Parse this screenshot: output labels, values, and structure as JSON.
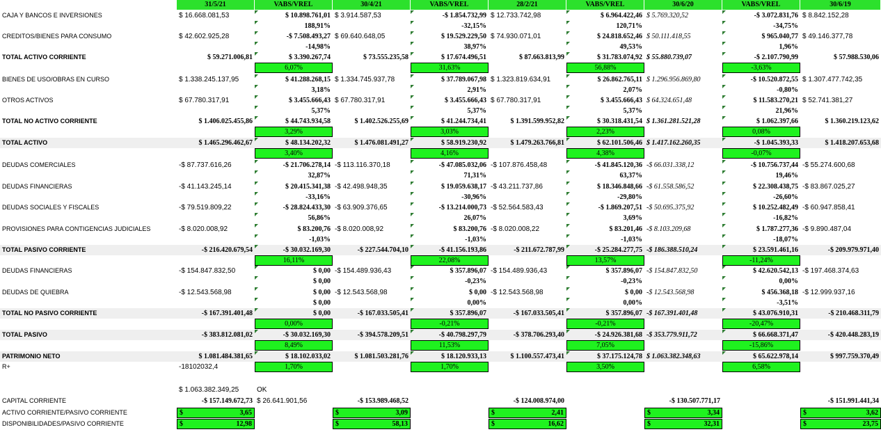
{
  "headers": [
    "31/5/21",
    "VABS/VREL",
    "30/4/21",
    "VABS/VREL",
    "28/2/21",
    "VABS/VREL",
    "30/6/20",
    "VABS/VREL",
    "30/6/19"
  ],
  "rows": [
    {
      "label": "CAJA Y BANCOS E INVERSIONES",
      "vals": [
        "$ 16.668.081,53",
        "$ 10.898.761,01",
        "$ 3.914.587,53",
        "-$ 1.854.732,99",
        "$ 12.733.742,98",
        "$ 6.964.422,46",
        "$ 5.769.320,52",
        "-$ 3.072.831,76",
        "$ 8.842.152,28"
      ]
    },
    {
      "label": "",
      "vals": [
        "",
        "188,91%",
        "",
        "-32,15%",
        "",
        "120,71%",
        "",
        "-34,75%",
        ""
      ]
    },
    {
      "label": "CREDITOS/BIENES PARA CONSUMO",
      "vals": [
        "$ 42.602.925,28",
        "-$ 7.508.493,27",
        "$ 69.640.648,05",
        "$ 19.529.229,50",
        "$ 74.930.071,01",
        "$ 24.818.652,46",
        "$ 50.111.418,55",
        "$ 965.040,77",
        "$ 49.146.377,78"
      ]
    },
    {
      "label": "",
      "vals": [
        "",
        "-14,98%",
        "",
        "38,97%",
        "",
        "49,53%",
        "",
        "1,96%",
        ""
      ]
    },
    {
      "label": "TOTAL ACTIVO CORRIENTE",
      "vals": [
        "$ 59.271.006,81",
        "$ 3.390.267,74",
        "$ 73.555.235,58",
        "$ 17.674.496,51",
        "$ 87.663.813,99",
        "$ 31.783.074,92",
        "$ 55.880.739,07",
        "-$ 2.107.790,99",
        "$ 57.988.530,06"
      ]
    },
    {
      "label": "",
      "vals": [
        "",
        "6,07%",
        "",
        "31,63%",
        "",
        "56,88%",
        "",
        "-3,63%",
        ""
      ]
    },
    {
      "label": "BIENES DE USO/OBRAS EN CURSO",
      "vals": [
        "$ 1.338.245.137,95",
        "$ 41.288.268,15",
        "$ 1.334.745.937,78",
        "$ 37.789.067,98",
        "$ 1.323.819.634,91",
        "$ 26.862.765,11",
        "$ 1.296.956.869,80",
        "-$ 10.520.872,55",
        "$ 1.307.477.742,35"
      ]
    },
    {
      "label": "",
      "vals": [
        "",
        "3,18%",
        "",
        "2,91%",
        "",
        "2,07%",
        "",
        "-0,80%",
        ""
      ]
    },
    {
      "label": "OTROS ACTIVOS",
      "vals": [
        "$ 67.780.317,91",
        "$ 3.455.666,43",
        "$ 67.780.317,91",
        "$ 3.455.666,43",
        "$ 67.780.317,91",
        "$ 3.455.666,43",
        "$ 64.324.651,48",
        "$ 11.583.270,21",
        "$ 52.741.381,27"
      ]
    },
    {
      "label": "",
      "vals": [
        "",
        "5,37%",
        "",
        "5,37%",
        "",
        "5,37%",
        "",
        "21,96%",
        ""
      ]
    },
    {
      "label": "TOTAL  NO ACTIVO CORRIENTE",
      "vals": [
        "$ 1.406.025.455,86",
        "$ 44.743.934,58",
        "$ 1.402.526.255,69",
        "$ 41.244.734,41",
        "$ 1.391.599.952,82",
        "$ 30.318.431,54",
        "$ 1.361.281.521,28",
        "$ 1.062.397,66",
        "$ 1.360.219.123,62"
      ]
    },
    {
      "label": "",
      "vals": [
        "",
        "3,29%",
        "",
        "3,03%",
        "",
        "2,23%",
        "",
        "0,08%",
        ""
      ]
    },
    {
      "label": "TOTAL ACTIVO",
      "vals": [
        "$ 1.465.296.462,67",
        "$ 48.134.202,32",
        "$ 1.476.081.491,27",
        "$ 58.919.230,92",
        "$ 1.479.263.766,81",
        "$ 62.101.506,46",
        "$ 1.417.162.260,35",
        "-$ 1.045.393,33",
        "$ 1.418.207.653,68"
      ]
    },
    {
      "label": "",
      "vals": [
        "",
        "3,40%",
        "",
        "4,16%",
        "",
        "4,38%",
        "",
        "-0,07%",
        ""
      ]
    },
    {
      "label": "DEUDAS COMERCIALES",
      "vals": [
        "-$ 87.737.616,26",
        "-$ 21.706.278,14",
        "-$ 113.116.370,18",
        "-$ 47.085.032,06",
        "-$ 107.876.458,48",
        "-$ 41.845.120,36",
        "-$ 66.031.338,12",
        "-$ 10.756.737,44",
        "-$ 55.274.600,68"
      ]
    },
    {
      "label": "",
      "vals": [
        "",
        "32,87%",
        "",
        "71,31%",
        "",
        "63,37%",
        "",
        "19,46%",
        ""
      ]
    },
    {
      "label": "DEUDAS FINANCIERAS",
      "vals": [
        "-$ 41.143.245,14",
        "$ 20.415.341,38",
        "-$ 42.498.948,35",
        "$ 19.059.638,17",
        "-$ 43.211.737,86",
        "$ 18.346.848,66",
        "-$ 61.558.586,52",
        "$ 22.308.438,75",
        "-$ 83.867.025,27"
      ]
    },
    {
      "label": "",
      "vals": [
        "",
        "-33,16%",
        "",
        "-30,96%",
        "",
        "-29,80%",
        "",
        "-26,60%",
        ""
      ]
    },
    {
      "label": "DEUDAS SOCIALES Y FISCALES",
      "vals": [
        "-$ 79.519.809,22",
        "-$ 28.824.433,30",
        "-$ 63.909.376,65",
        "-$ 13.214.000,73",
        "-$ 52.564.583,43",
        "-$ 1.869.207,51",
        "-$ 50.695.375,92",
        "$ 10.252.482,49",
        "-$ 60.947.858,41"
      ]
    },
    {
      "label": "",
      "vals": [
        "",
        "56,86%",
        "",
        "26,07%",
        "",
        "3,69%",
        "",
        "-16,82%",
        ""
      ]
    },
    {
      "label": "PROVISIONES PARA CONTIGENCIAS JUDICIALES",
      "vals": [
        "-$ 8.020.008,92",
        "$ 83.200,76",
        "-$ 8.020.008,92",
        "$ 83.200,76",
        "-$ 8.020.008,22",
        "$ 83.201,46",
        "-$ 8.103.209,68",
        "$ 1.787.277,36",
        "-$ 9.890.487,04"
      ]
    },
    {
      "label": "",
      "vals": [
        "",
        "-1,03%",
        "",
        "-1,03%",
        "",
        "-1,03%",
        "",
        "-18,07%",
        ""
      ]
    },
    {
      "label": "TOTAL PASIVO CORRIENTE",
      "vals": [
        "-$ 216.420.679,54",
        "-$ 30.032.169,30",
        "-$ 227.544.704,10",
        "-$ 41.156.193,86",
        "-$ 211.672.787,99",
        "-$ 25.284.277,75",
        "-$ 186.388.510,24",
        "$ 23.591.461,16",
        "-$ 209.979.971,40"
      ]
    },
    {
      "label": "",
      "vals": [
        "",
        "16,11%",
        "",
        "22,08%",
        "",
        "13,57%",
        "",
        "-11,24%",
        ""
      ]
    },
    {
      "label": "DEUDAS FINANCIERAS",
      "vals": [
        "-$ 154.847.832,50",
        "$ 0,00",
        "-$ 154.489.936,43",
        "$ 357.896,07",
        "-$ 154.489.936,43",
        "$ 357.896,07",
        "-$ 154.847.832,50",
        "$ 42.620.542,13",
        "-$ 197.468.374,63"
      ]
    },
    {
      "label": "",
      "vals": [
        "",
        "$ 0,00",
        "",
        "-0,23%",
        "",
        "-0,23%",
        "",
        "0,00%",
        ""
      ]
    },
    {
      "label": "DEUDAS DE QUIEBRA",
      "vals": [
        "-$ 12.543.568,98",
        "$ 0,00",
        "-$ 12.543.568,98",
        "$ 0,00",
        "-$ 12.543.568,98",
        "$ 0,00",
        "-$ 12.543.568,98",
        "$ 456.368,18",
        "-$ 12.999.937,16"
      ]
    },
    {
      "label": "",
      "vals": [
        "",
        "$ 0,00",
        "",
        "0,00%",
        "",
        "0,00%",
        "",
        "-3,51%",
        ""
      ]
    },
    {
      "label": "TOTAL NO PASIVO CORRIENTE",
      "vals": [
        "-$ 167.391.401,48",
        "$ 0,00",
        "-$ 167.033.505,41",
        "$ 357.896,07",
        "-$ 167.033.505,41",
        "$ 357.896,07",
        "-$ 167.391.401,48",
        "$ 43.076.910,31",
        "-$ 210.468.311,79"
      ]
    },
    {
      "label": "",
      "vals": [
        "",
        "0,00%",
        "",
        "-0,21%",
        "",
        "-0,21%",
        "",
        "-20,47%",
        ""
      ]
    },
    {
      "label": "TOTAL PASIVO",
      "vals": [
        "-$ 383.812.081,02",
        "-$ 30.032.169,30",
        "-$ 394.578.209,51",
        "-$ 40.798.297,79",
        "-$ 378.706.293,40",
        "-$ 24.926.381,68",
        "-$ 353.779.911,72",
        "$ 66.668.371,47",
        "-$ 420.448.283,19"
      ]
    },
    {
      "label": "",
      "vals": [
        "",
        "8,49%",
        "",
        "11,53%",
        "",
        "7,05%",
        "",
        "-15,86%",
        ""
      ]
    },
    {
      "label": "PATRIMONIO NETO",
      "vals": [
        "$ 1.081.484.381,65",
        "$ 18.102.033,02",
        "$ 1.081.503.281,76",
        "$ 18.120.933,13",
        "$ 1.100.557.473,41",
        "$ 37.175.124,78",
        "$ 1.063.382.348,63",
        "$ 65.622.978,14",
        "$ 997.759.370,49"
      ]
    },
    {
      "label": "R+",
      "vals": [
        "-18102032,4",
        "1,70%",
        "",
        "1,70%",
        "",
        "3,50%",
        "",
        "6,58%",
        ""
      ]
    }
  ],
  "check": {
    "value": "$ 1.063.382.349,25",
    "ok": "OK"
  },
  "capital": {
    "label": "CAPITAL CORRIENTE",
    "vals": [
      "-$ 157.149.672,73",
      "$ 26.641.901,56",
      "-$ 153.989.468,52",
      "-$ 124.008.974,00",
      "-$ 130.507.771,17",
      "-$ 151.991.441,34"
    ]
  },
  "ratio1": {
    "label": "ACTIVO CORRIENTE/PASIVO CORRIENTE",
    "cur": "$",
    "vals": [
      "3,65",
      "3,09",
      "2,41",
      "3,34",
      "3,62"
    ]
  },
  "ratio2": {
    "label": "DISPONIBILIDADES/PASIVO CORRIENTE",
    "cur": "$",
    "vals": [
      "12,98",
      "58,13",
      "16,62",
      "32,31",
      "23,75"
    ]
  }
}
